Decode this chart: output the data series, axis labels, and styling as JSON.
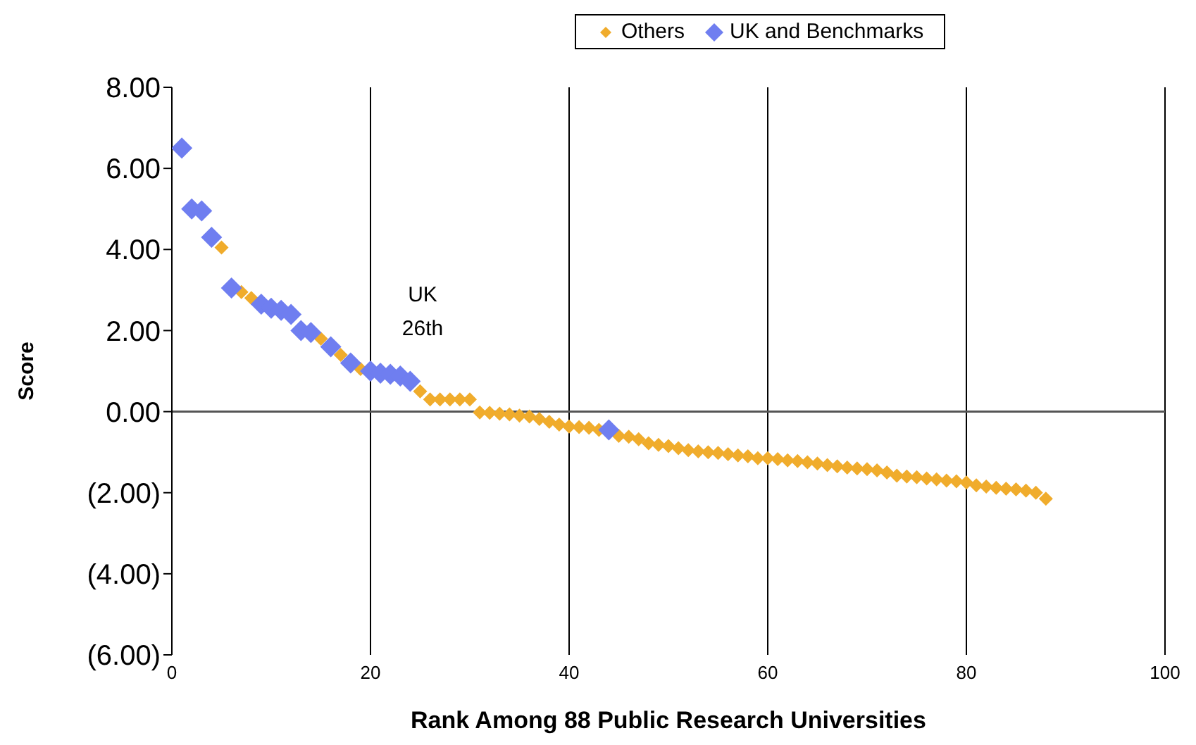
{
  "chart_data": {
    "type": "scatter",
    "xlabel": "Rank Among 88 Public Research Universities",
    "ylabel": "Score",
    "legend": "top",
    "marker": "diamond",
    "grid": "x",
    "xlim": [
      0,
      100
    ],
    "xticks": [
      0,
      20,
      40,
      60,
      80,
      100
    ],
    "ylim": [
      -6,
      8
    ],
    "yticks": [
      {
        "value": -6,
        "label": "(6.00)"
      },
      {
        "value": -4,
        "label": "(4.00)"
      },
      {
        "value": -2,
        "label": "(2.00)"
      },
      {
        "value": 0,
        "label": "0.00"
      },
      {
        "value": 2,
        "label": "2.00"
      },
      {
        "value": 4,
        "label": "4.00"
      },
      {
        "value": 6,
        "label": "6.00"
      },
      {
        "value": 8,
        "label": "8.00"
      }
    ],
    "ref_lines": [
      {
        "axis": "y",
        "value": 0
      }
    ],
    "annotations": [
      "UK 26th"
    ],
    "series": [
      {
        "name": "Others",
        "color": "#f0ac2c",
        "x": [
          5,
          7,
          8,
          15,
          17,
          19,
          25,
          26,
          27,
          28,
          29,
          30,
          31,
          32,
          33,
          34,
          35,
          36,
          37,
          38,
          39,
          40,
          41,
          42,
          43,
          45,
          46,
          47,
          48,
          49,
          50,
          51,
          52,
          53,
          54,
          55,
          56,
          57,
          58,
          59,
          60,
          61,
          62,
          63,
          64,
          65,
          66,
          67,
          68,
          69,
          70,
          71,
          72,
          73,
          74,
          75,
          76,
          77,
          78,
          79,
          80,
          81,
          82,
          83,
          84,
          85,
          86,
          87,
          88
        ],
        "values": [
          4.05,
          2.95,
          2.8,
          1.8,
          1.4,
          1.05,
          0.5,
          0.3,
          0.3,
          0.3,
          0.3,
          0.3,
          -0.02,
          -0.03,
          -0.05,
          -0.07,
          -0.1,
          -0.12,
          -0.18,
          -0.25,
          -0.32,
          -0.37,
          -0.38,
          -0.4,
          -0.45,
          -0.6,
          -0.62,
          -0.68,
          -0.78,
          -0.82,
          -0.85,
          -0.9,
          -0.95,
          -0.98,
          -1.0,
          -1.02,
          -1.05,
          -1.08,
          -1.1,
          -1.15,
          -1.15,
          -1.17,
          -1.2,
          -1.22,
          -1.25,
          -1.28,
          -1.32,
          -1.35,
          -1.38,
          -1.4,
          -1.42,
          -1.45,
          -1.5,
          -1.58,
          -1.6,
          -1.62,
          -1.65,
          -1.67,
          -1.7,
          -1.72,
          -1.75,
          -1.82,
          -1.85,
          -1.88,
          -1.9,
          -1.92,
          -1.95,
          -2.0,
          -2.15
        ]
      },
      {
        "name": "UK and Benchmarks",
        "color": "#6f7ef0",
        "x": [
          1,
          2,
          3,
          4,
          6,
          9,
          10,
          11,
          12,
          13,
          14,
          16,
          18,
          20,
          21,
          22,
          23,
          24,
          44
        ],
        "values": [
          6.5,
          5.0,
          4.95,
          4.3,
          3.05,
          2.65,
          2.55,
          2.5,
          2.4,
          2.0,
          1.95,
          1.6,
          1.2,
          1.0,
          0.95,
          0.92,
          0.88,
          0.75,
          -0.45
        ]
      }
    ]
  }
}
